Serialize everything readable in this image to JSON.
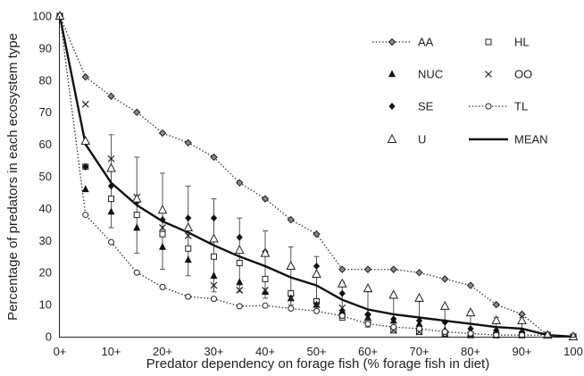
{
  "chart_data": {
    "type": "line",
    "title": "",
    "xlabel": "Predator dependency on forage fish (% forage fish in diet)",
    "ylabel": "Percentage of predators in each ecosystem type",
    "xlim": [
      0,
      100
    ],
    "ylim": [
      0,
      100
    ],
    "x_ticks": [
      "0+",
      "10+",
      "20+",
      "30+",
      "40+",
      "50+",
      "60+",
      "70+",
      "80+",
      "90+",
      "100"
    ],
    "y_ticks": [
      0,
      10,
      20,
      30,
      40,
      50,
      60,
      70,
      80,
      90,
      100
    ],
    "grid": false,
    "legend_position": "top-right",
    "x": [
      0,
      5,
      10,
      15,
      20,
      25,
      30,
      35,
      40,
      45,
      50,
      55,
      60,
      65,
      70,
      75,
      80,
      85,
      90,
      95,
      100
    ],
    "series": [
      {
        "name": "AA",
        "marker": "diamond",
        "line": "dotted",
        "values": [
          100,
          81,
          75,
          70,
          63.5,
          60.5,
          56,
          48,
          43,
          36.5,
          32,
          21,
          21,
          21,
          20,
          18,
          16,
          10,
          7,
          0.5,
          0
        ]
      },
      {
        "name": "HL",
        "marker": "open-square",
        "line": "none",
        "values": [
          100,
          53,
          43,
          38,
          32,
          27.5,
          25,
          23,
          18,
          13.5,
          11,
          6,
          4.5,
          2,
          1.5,
          1,
          0.5,
          0.5,
          0.5,
          0.5,
          0
        ]
      },
      {
        "name": "NUC",
        "marker": "filled-triangle",
        "line": "none",
        "values": [
          100,
          46,
          39,
          34,
          28,
          24,
          19,
          17,
          14,
          12,
          10,
          8,
          6,
          5,
          4,
          2,
          1,
          0.5,
          0.5,
          0.5,
          0
        ]
      },
      {
        "name": "OO",
        "marker": "x",
        "line": "none",
        "values": [
          100,
          72.5,
          55.5,
          43.5,
          34,
          31.5,
          16,
          14.5,
          14.5,
          12,
          10,
          9,
          6,
          2,
          1.5,
          1,
          0.5,
          0.5,
          0.5,
          0.5,
          0
        ]
      },
      {
        "name": "SE",
        "marker": "filled-diamond",
        "line": "none",
        "values": [
          100,
          53,
          47,
          42,
          36.5,
          37,
          37,
          31,
          26.5,
          22,
          22,
          13.5,
          7,
          5.5,
          5,
          4.5,
          2.5,
          2,
          1.5,
          0.5,
          0
        ]
      },
      {
        "name": "TL",
        "marker": "open-circle",
        "line": "dotted",
        "values": [
          100,
          38,
          29.5,
          20,
          15.5,
          12.5,
          11.8,
          9.5,
          9.7,
          8.8,
          8,
          6.5,
          4,
          3,
          2.5,
          1.5,
          1,
          0.5,
          0.5,
          0.5,
          0
        ]
      },
      {
        "name": "U",
        "marker": "open-triangle",
        "line": "none",
        "values": [
          100,
          61,
          52.5,
          43,
          39.5,
          34,
          30.5,
          27,
          26,
          22,
          19.5,
          16.5,
          15,
          13,
          12,
          9.5,
          7.5,
          5,
          5,
          0.5,
          0
        ]
      },
      {
        "name": "MEAN",
        "marker": "none",
        "line": "solid",
        "values": [
          100,
          60,
          48,
          41,
          36,
          32.5,
          28.5,
          25,
          22,
          18.5,
          16,
          11.5,
          8.5,
          7,
          6,
          5,
          4,
          3,
          2.5,
          0.5,
          0
        ]
      }
    ],
    "error_bars": {
      "series": "MEAN",
      "upper": [
        100,
        60,
        63,
        56,
        51,
        47,
        43,
        37,
        33,
        28,
        25,
        17,
        14,
        12,
        11,
        9,
        8,
        6,
        6,
        1,
        0
      ],
      "lower": [
        100,
        60,
        34,
        26,
        21,
        19,
        14,
        14,
        12,
        10,
        8,
        7,
        3,
        2,
        1,
        1,
        1,
        0.5,
        0.5,
        0,
        0
      ]
    }
  }
}
